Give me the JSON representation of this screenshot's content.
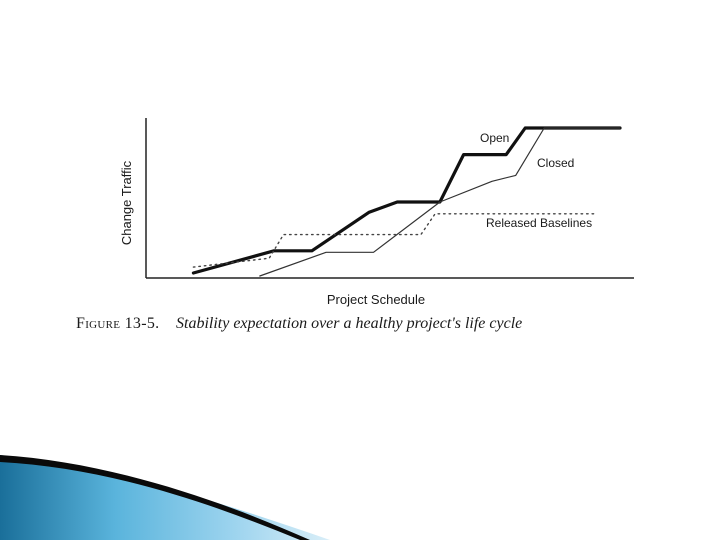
{
  "caption": {
    "label": "Figure 13-5.",
    "text": "Stability expectation over a healthy project's life cycle"
  },
  "chart_data": {
    "type": "line",
    "xlabel": "Project Schedule",
    "ylabel": "Change Traffic",
    "xlim": [
      0,
      100
    ],
    "ylim": [
      0,
      100
    ],
    "grid": false,
    "legend": "inline labels",
    "series": [
      {
        "name": "Open",
        "style": "thick-solid",
        "color": "#111111",
        "points": [
          [
            10,
            2
          ],
          [
            27,
            17
          ],
          [
            35,
            17
          ],
          [
            47,
            43
          ],
          [
            53,
            50
          ],
          [
            62,
            50
          ],
          [
            67,
            82
          ],
          [
            76,
            82
          ],
          [
            80,
            100
          ],
          [
            100,
            100
          ]
        ]
      },
      {
        "name": "Closed",
        "style": "thin-solid",
        "color": "#333333",
        "points": [
          [
            24,
            0
          ],
          [
            38,
            16
          ],
          [
            48,
            16
          ],
          [
            62,
            50
          ],
          [
            73,
            64
          ],
          [
            78,
            68
          ],
          [
            84,
            100
          ],
          [
            100,
            100
          ]
        ]
      },
      {
        "name": "Released Baselines",
        "style": "dotted",
        "color": "#444444",
        "points": [
          [
            10,
            6
          ],
          [
            26,
            12
          ],
          [
            29,
            28
          ],
          [
            58,
            28
          ],
          [
            61,
            42
          ],
          [
            95,
            42
          ]
        ]
      }
    ]
  },
  "decor": {
    "wave_colors": [
      "#1a6f9a",
      "#5ab4dc",
      "#9bd3ee",
      "#d9eef8"
    ],
    "arrow_color": "#0a0a0a"
  }
}
